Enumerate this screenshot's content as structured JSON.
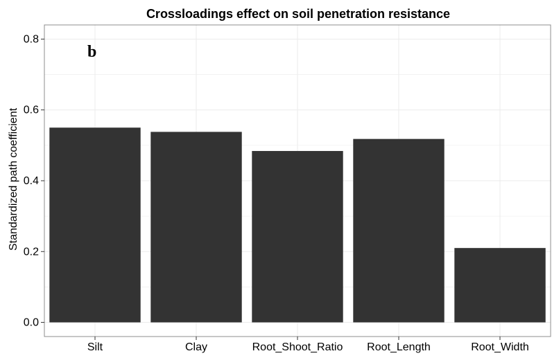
{
  "chart_data": {
    "type": "bar",
    "title": "Crossloadings effect on soil penetration resistance",
    "panel_label": "b",
    "xlabel": "",
    "ylabel": "Standardized path coefficient",
    "categories": [
      "Silt",
      "Clay",
      "Root_Shoot_Ratio",
      "Root_Length",
      "Root_Width"
    ],
    "values": [
      0.55,
      0.538,
      0.484,
      0.518,
      0.21
    ],
    "ylim": [
      -0.04,
      0.84
    ],
    "yticks": [
      0.0,
      0.2,
      0.4,
      0.6,
      0.8
    ],
    "ytick_labels": [
      "0.0",
      "0.2",
      "0.4",
      "0.6",
      "0.8"
    ],
    "grid": true,
    "legend": "none",
    "colors": {
      "bar": "#333333",
      "grid": "#ebebeb",
      "panel_border": "#8c8c8c",
      "background": "#ffffff"
    }
  }
}
